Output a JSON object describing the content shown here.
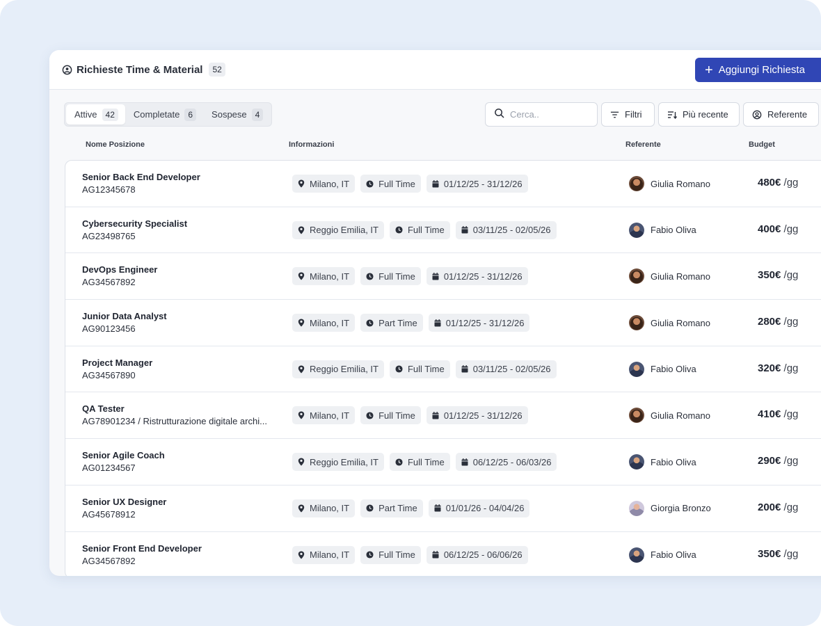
{
  "header": {
    "title": "Richieste Time & Material",
    "count": "52",
    "add_button": "Aggiungi Richiesta"
  },
  "tabs": [
    {
      "label": "Attive",
      "count": "42"
    },
    {
      "label": "Completate",
      "count": "6"
    },
    {
      "label": "Sospese",
      "count": "4"
    }
  ],
  "search": {
    "placeholder": "Cerca.."
  },
  "toolbar": {
    "filters": "Filtri",
    "sort": "Più recente",
    "referent": "Referente"
  },
  "columns": {
    "name": "Nome Posizione",
    "info": "Informazioni",
    "referent": "Referente",
    "budget": "Budget"
  },
  "rows": [
    {
      "name": "Senior Back End Developer",
      "code": "AG12345678",
      "location": "Milano, IT",
      "type": "Full Time",
      "dates": "01/12/25 - 31/12/26",
      "referent": "Giulia Romano",
      "avatar": "giulia",
      "budget": "480€",
      "unit": "/gg"
    },
    {
      "name": "Cybersecurity Specialist",
      "code": "AG23498765",
      "location": "Reggio Emilia, IT",
      "type": "Full Time",
      "dates": "03/11/25 - 02/05/26",
      "referent": "Fabio Oliva",
      "avatar": "fabio",
      "budget": "400€",
      "unit": "/gg"
    },
    {
      "name": "DevOps Engineer",
      "code": "AG34567892",
      "location": "Milano, IT",
      "type": "Full Time",
      "dates": "01/12/25 - 31/12/26",
      "referent": "Giulia Romano",
      "avatar": "giulia",
      "budget": "350€",
      "unit": "/gg"
    },
    {
      "name": "Junior Data Analyst",
      "code": "AG90123456",
      "location": "Milano, IT",
      "type": "Part Time",
      "dates": "01/12/25 - 31/12/26",
      "referent": "Giulia Romano",
      "avatar": "giulia",
      "budget": "280€",
      "unit": "/gg"
    },
    {
      "name": "Project Manager",
      "code": "AG34567890",
      "location": "Reggio Emilia, IT",
      "type": "Full Time",
      "dates": "03/11/25 - 02/05/26",
      "referent": "Fabio Oliva",
      "avatar": "fabio",
      "budget": "320€",
      "unit": "/gg"
    },
    {
      "name": "QA Tester",
      "code": "AG78901234 / Ristrutturazione digitale archi...",
      "location": "Milano, IT",
      "type": "Full Time",
      "dates": "01/12/25 - 31/12/26",
      "referent": "Giulia Romano",
      "avatar": "giulia",
      "budget": "410€",
      "unit": "/gg"
    },
    {
      "name": "Senior Agile Coach",
      "code": "AG01234567",
      "location": "Reggio Emilia, IT",
      "type": "Full Time",
      "dates": "06/12/25 - 06/03/26",
      "referent": "Fabio Oliva",
      "avatar": "fabio",
      "budget": "290€",
      "unit": "/gg"
    },
    {
      "name": "Senior UX Designer",
      "code": "AG45678912",
      "location": "Milano, IT",
      "type": "Part Time",
      "dates": "01/01/26 - 04/04/26",
      "referent": "Giorgia Bronzo",
      "avatar": "giorgia",
      "budget": "200€",
      "unit": "/gg"
    },
    {
      "name": "Senior Front End Developer",
      "code": "AG34567892",
      "location": "Milano, IT",
      "type": "Full Time",
      "dates": "06/12/25 - 06/06/26",
      "referent": "Fabio Oliva",
      "avatar": "fabio",
      "budget": "350€",
      "unit": "/gg"
    }
  ],
  "colors": {
    "accent": "#3046b5",
    "page_bg": "#e6eef9",
    "chip_bg": "#eef0f3"
  },
  "icons": {
    "header": "user-cog-icon",
    "location": "map-pin-icon",
    "type": "clock-icon",
    "dates": "calendar-icon",
    "search": "search-icon",
    "filters": "filter-icon",
    "sort": "sort-icon",
    "referent": "user-circle-icon"
  }
}
